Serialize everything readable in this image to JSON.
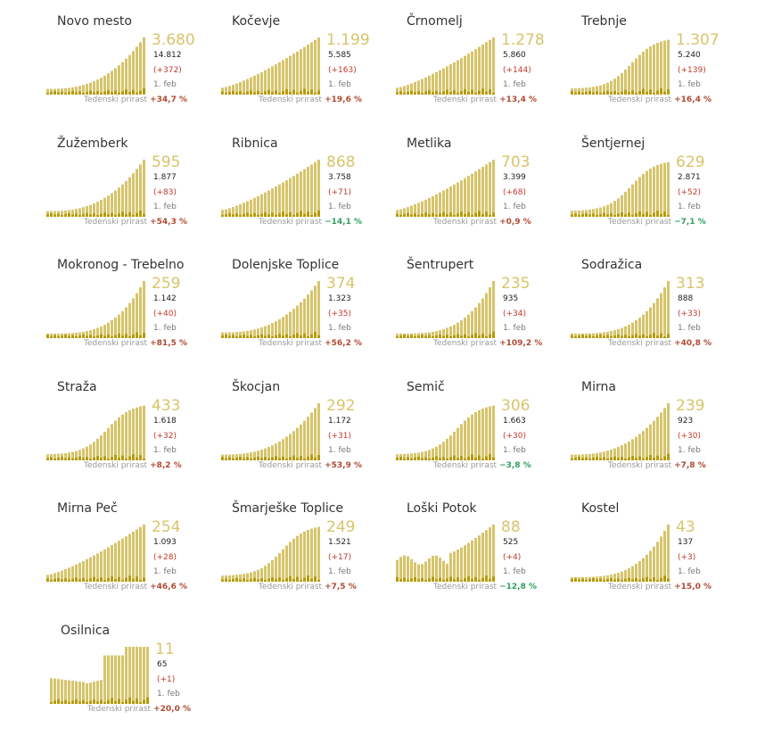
{
  "legend": {
    "growth_label": "Tedenski prirast",
    "date_label": "1. feb"
  },
  "colors": {
    "active_bar": "#d6c46b",
    "new_bar": "#b59a06",
    "negative": "#2e9e5b",
    "positive": "#b04a33"
  },
  "municipalities": [
    {
      "name": "Novo mesto",
      "active": "3.680",
      "total": "14.812",
      "delta": "(+372)",
      "growth": "+34,7 %",
      "growth_sign": "pos",
      "shape": "u1"
    },
    {
      "name": "Kočevje",
      "active": "1.199",
      "total": "5.585",
      "delta": "(+163)",
      "growth": "+19,6 %",
      "growth_sign": "pos",
      "shape": "lin"
    },
    {
      "name": "Črnomelj",
      "active": "1.278",
      "total": "5.860",
      "delta": "(+144)",
      "growth": "+13,4 %",
      "growth_sign": "pos",
      "shape": "lin"
    },
    {
      "name": "Trebnje",
      "active": "1.307",
      "total": "5.240",
      "delta": "(+139)",
      "growth": "+16,4 %",
      "growth_sign": "pos",
      "shape": "s"
    },
    {
      "name": "Žužemberk",
      "active": "595",
      "total": "1.877",
      "delta": "(+83)",
      "growth": "+54,3 %",
      "growth_sign": "pos",
      "shape": "u1"
    },
    {
      "name": "Ribnica",
      "active": "868",
      "total": "3.758",
      "delta": "(+71)",
      "growth": "−14,1 %",
      "growth_sign": "neg",
      "shape": "lin"
    },
    {
      "name": "Metlika",
      "active": "703",
      "total": "3.399",
      "delta": "(+68)",
      "growth": "+0,9 %",
      "growth_sign": "pos",
      "shape": "lin"
    },
    {
      "name": "Šentjernej",
      "active": "629",
      "total": "2.871",
      "delta": "(+52)",
      "growth": "−7,1 %",
      "growth_sign": "neg",
      "shape": "s"
    },
    {
      "name": "Mokronog - Trebelno",
      "active": "259",
      "total": "1.142",
      "delta": "(+40)",
      "growth": "+81,5 %",
      "growth_sign": "pos",
      "shape": "u2"
    },
    {
      "name": "Dolenjske Toplice",
      "active": "374",
      "total": "1.323",
      "delta": "(+35)",
      "growth": "+56,2 %",
      "growth_sign": "pos",
      "shape": "u1"
    },
    {
      "name": "Šentrupert",
      "active": "235",
      "total": "935",
      "delta": "(+34)",
      "growth": "+109,2 %",
      "growth_sign": "pos",
      "shape": "u2"
    },
    {
      "name": "Sodražica",
      "active": "313",
      "total": "888",
      "delta": "(+33)",
      "growth": "+40,8 %",
      "growth_sign": "pos",
      "shape": "u2"
    },
    {
      "name": "Straža",
      "active": "433",
      "total": "1.618",
      "delta": "(+32)",
      "growth": "+8,2 %",
      "growth_sign": "pos",
      "shape": "s"
    },
    {
      "name": "Škocjan",
      "active": "292",
      "total": "1.172",
      "delta": "(+31)",
      "growth": "+53,9 %",
      "growth_sign": "pos",
      "shape": "u1"
    },
    {
      "name": "Semič",
      "active": "306",
      "total": "1.663",
      "delta": "(+30)",
      "growth": "−3,8 %",
      "growth_sign": "neg",
      "shape": "s"
    },
    {
      "name": "Mirna",
      "active": "239",
      "total": "923",
      "delta": "(+30)",
      "growth": "+7,8 %",
      "growth_sign": "pos",
      "shape": "u1"
    },
    {
      "name": "Mirna Peč",
      "active": "254",
      "total": "1.093",
      "delta": "(+28)",
      "growth": "+46,6 %",
      "growth_sign": "pos",
      "shape": "lin"
    },
    {
      "name": "Šmarješke Toplice",
      "active": "249",
      "total": "1.521",
      "delta": "(+17)",
      "growth": "+7,5 %",
      "growth_sign": "pos",
      "shape": "s"
    },
    {
      "name": "Loški Potok",
      "active": "88",
      "total": "525",
      "delta": "(+4)",
      "growth": "−12,8 %",
      "growth_sign": "neg",
      "shape": "step"
    },
    {
      "name": "Kostel",
      "active": "43",
      "total": "137",
      "delta": "(+3)",
      "growth": "+15,0 %",
      "growth_sign": "pos",
      "shape": "u2"
    },
    {
      "name": "Osilnica",
      "active": "11",
      "total": "65",
      "delta": "(+1)",
      "growth": "+20,0 %",
      "growth_sign": "pos",
      "shape": "osil"
    }
  ]
}
